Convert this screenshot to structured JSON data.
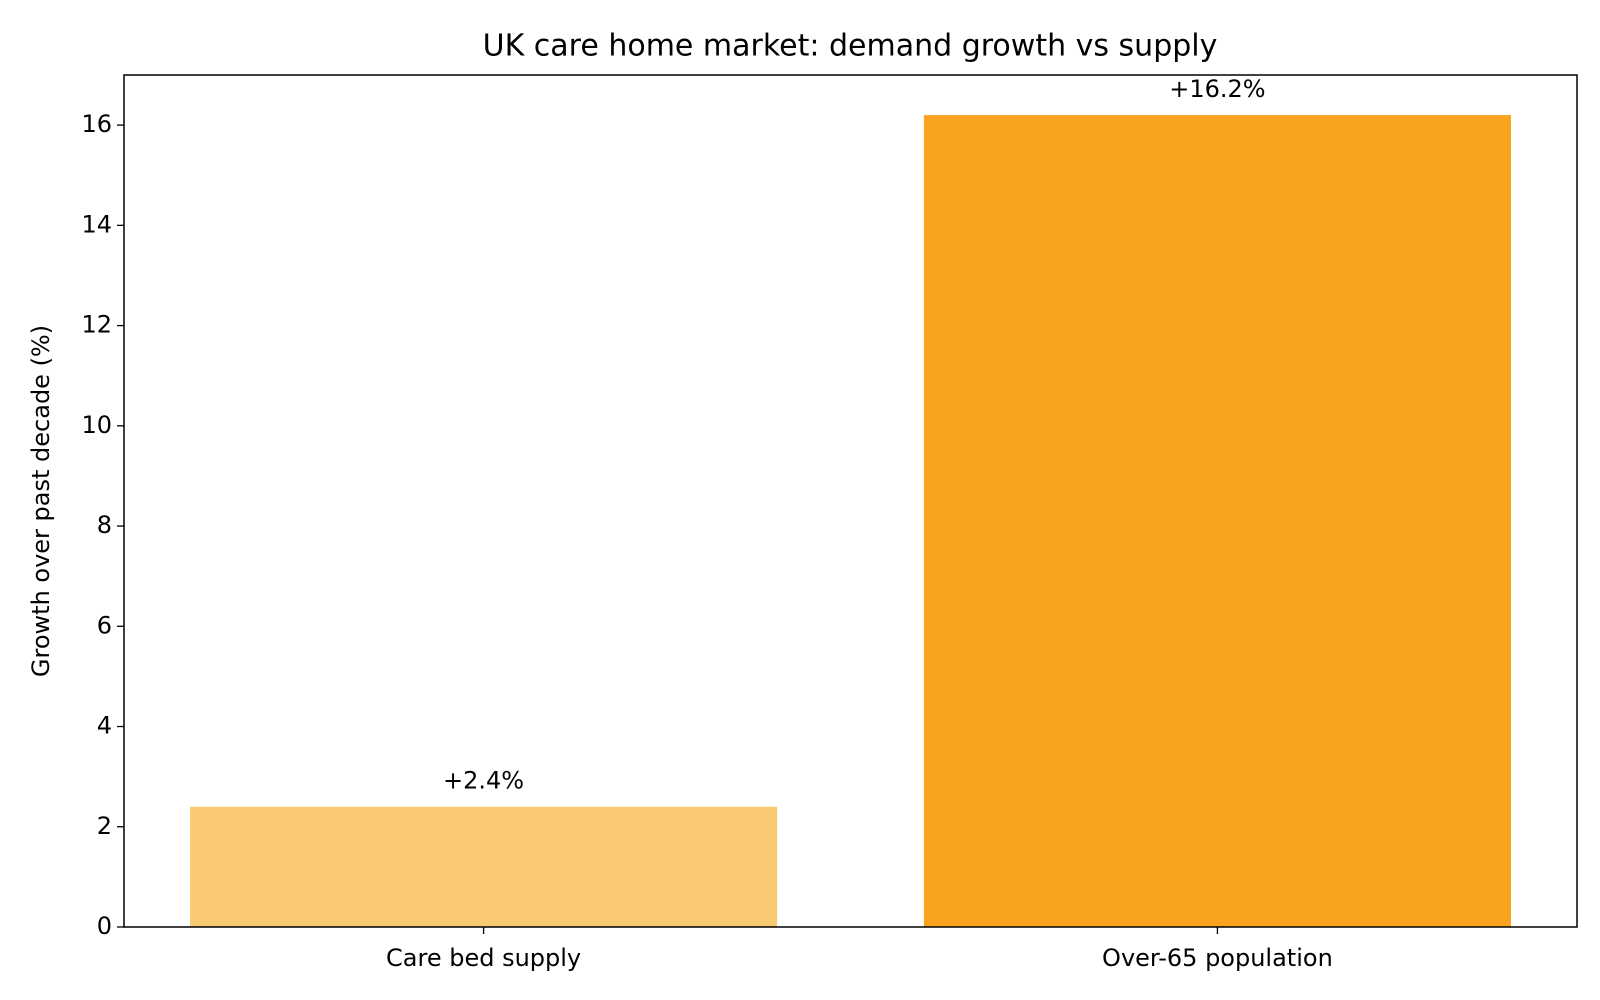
{
  "chart_data": {
    "type": "bar",
    "title": "UK care home market: demand growth vs supply",
    "y_label": "Growth over past decade (%)",
    "categories": [
      "Care bed supply",
      "Over-65 population"
    ],
    "values": [
      2.4,
      16.2
    ],
    "value_labels": [
      "+2.4%",
      "+16.2%"
    ],
    "colors": [
      "#f9ca72",
      "#f9a31f"
    ],
    "ylim": [
      0,
      17
    ],
    "yticks": [
      0,
      2,
      4,
      6,
      8,
      10,
      12,
      14,
      16
    ],
    "grid": false
  }
}
